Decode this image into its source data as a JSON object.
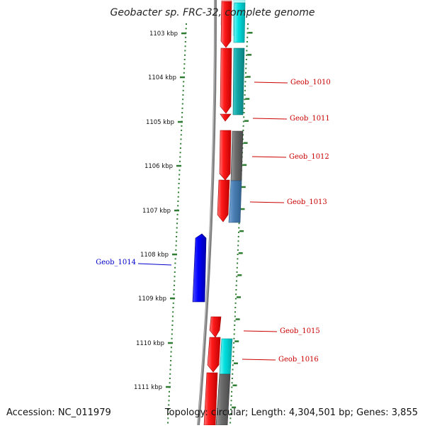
{
  "title": "Geobacter sp. FRC-32, complete genome",
  "accession": "Accession: NC_011979",
  "topology": "Topology: circular; Length: 4,304,501 bp; Genes: 3,855",
  "colors": {
    "forward_gene": "#ff0000",
    "reverse_gene": "#0000ff",
    "cyan_feature": "#00e5e5",
    "gray_feature": "#6b6b6b",
    "steelblue_feature": "#4a7fb5",
    "ruler": "#2e7d32",
    "label_forward": "#cc0000",
    "label_reverse": "#0000cc",
    "backbone": "#808080"
  },
  "ruler_ticks": [
    {
      "label": "1103 kbp"
    },
    {
      "label": "1104 kbp"
    },
    {
      "label": "1105 kbp"
    },
    {
      "label": "1106 kbp"
    },
    {
      "label": "1107 kbp"
    },
    {
      "label": "1108 kbp"
    },
    {
      "label": "1109 kbp"
    },
    {
      "label": "1110 kbp"
    },
    {
      "label": "1111 kbp"
    }
  ],
  "genes": [
    {
      "label": "Geob_1010",
      "strand": "forward"
    },
    {
      "label": "Geob_1011",
      "strand": "forward"
    },
    {
      "label": "Geob_1012",
      "strand": "forward"
    },
    {
      "label": "Geob_1013",
      "strand": "forward"
    },
    {
      "label": "Geob_1014",
      "strand": "reverse"
    },
    {
      "label": "Geob_1015",
      "strand": "forward"
    },
    {
      "label": "Geob_1016",
      "strand": "forward"
    }
  ]
}
